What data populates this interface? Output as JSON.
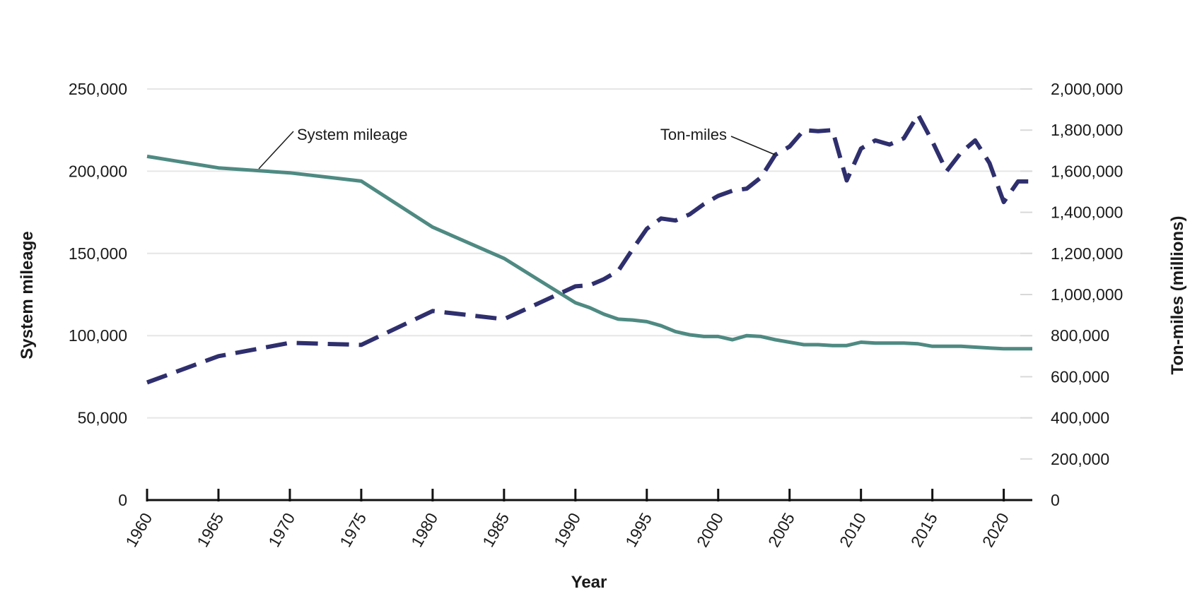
{
  "chart_data": {
    "type": "line",
    "title": "",
    "xlabel": "Year",
    "ylabel_left": "System mileage",
    "ylabel_right": "Ton-miles (millions)",
    "xlim": [
      1960,
      2022
    ],
    "x_ticks": [
      "1960",
      "1965",
      "1970",
      "1975",
      "1980",
      "1985",
      "1990",
      "1995",
      "2000",
      "2005",
      "2010",
      "2015",
      "2020"
    ],
    "ylim_left": [
      0,
      250000
    ],
    "y_ticks_left": [
      "0",
      "50,000",
      "100,000",
      "150,000",
      "200,000",
      "250,000"
    ],
    "ylim_right": [
      0,
      2000000
    ],
    "y_ticks_right": [
      "0",
      "200,000",
      "400,000",
      "600,000",
      "800,000",
      "1,000,000",
      "1,200,000",
      "1,400,000",
      "1,600,000",
      "1,800,000",
      "2,000,000"
    ],
    "grid": true,
    "legend": "none (series labeled by inline annotations)",
    "series": [
      {
        "name": "System mileage",
        "axis": "left",
        "style": "solid",
        "color": "#4e8a82",
        "x": [
          1960,
          1965,
          1970,
          1975,
          1980,
          1985,
          1990,
          1991,
          1992,
          1993,
          1994,
          1995,
          1996,
          1997,
          1998,
          1999,
          2000,
          2001,
          2002,
          2003,
          2004,
          2005,
          2006,
          2007,
          2008,
          2009,
          2010,
          2011,
          2012,
          2013,
          2014,
          2015,
          2016,
          2017,
          2018,
          2019,
          2020,
          2021,
          2022
        ],
        "values": [
          209000,
          202000,
          199000,
          194000,
          166000,
          147000,
          120000,
          117000,
          113000,
          110000,
          109500,
          108500,
          106000,
          102500,
          100500,
          99500,
          99500,
          97500,
          100000,
          99500,
          97500,
          96000,
          94500,
          94500,
          94000,
          94000,
          96000,
          95500,
          95500,
          95500,
          95000,
          93500,
          93500,
          93500,
          93000,
          92500,
          92000,
          92000,
          92000
        ]
      },
      {
        "name": "Ton-miles",
        "axis": "right",
        "style": "dashed",
        "color": "#2f2f6e",
        "x": [
          1960,
          1965,
          1970,
          1975,
          1980,
          1985,
          1990,
          1991,
          1992,
          1993,
          1994,
          1995,
          1996,
          1997,
          1998,
          1999,
          2000,
          2001,
          2002,
          2003,
          2004,
          2005,
          2006,
          2007,
          2008,
          2009,
          2010,
          2011,
          2012,
          2013,
          2014,
          2015,
          2016,
          2017,
          2018,
          2019,
          2020,
          2021,
          2022
        ],
        "values": [
          572000,
          700000,
          765000,
          755000,
          920000,
          880000,
          1040000,
          1045000,
          1075000,
          1115000,
          1220000,
          1320000,
          1370000,
          1360000,
          1390000,
          1440000,
          1480000,
          1505000,
          1515000,
          1570000,
          1680000,
          1720000,
          1800000,
          1795000,
          1800000,
          1555000,
          1710000,
          1750000,
          1730000,
          1760000,
          1875000,
          1745000,
          1600000,
          1690000,
          1750000,
          1640000,
          1450000,
          1550000,
          1550000
        ]
      }
    ],
    "annotations": [
      {
        "text": "System mileage",
        "target_series": "System mileage"
      },
      {
        "text": "Ton-miles",
        "target_series": "Ton-miles"
      }
    ]
  }
}
